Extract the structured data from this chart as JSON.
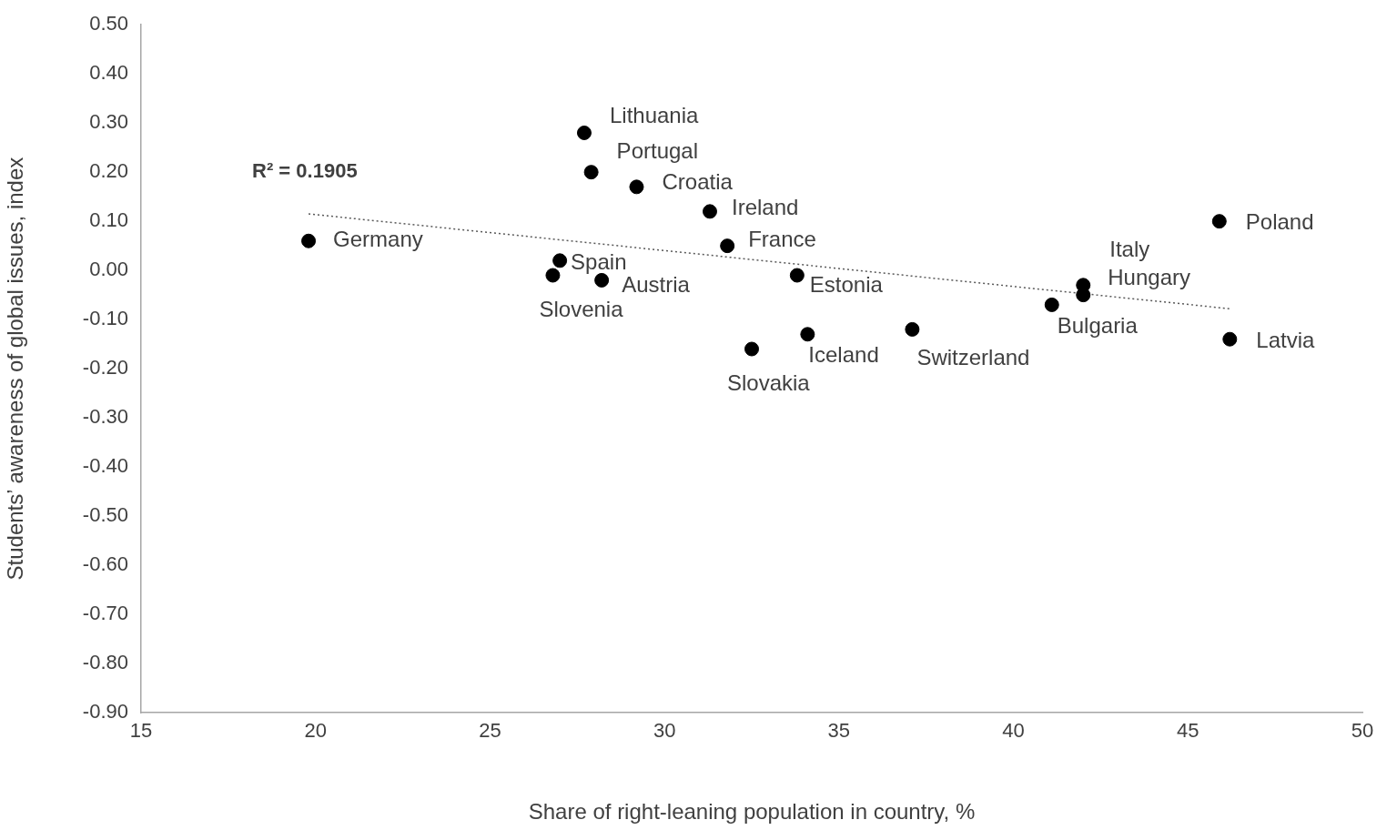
{
  "chart_data": {
    "type": "scatter",
    "xlabel": "Share of right-leaning population in country, %",
    "ylabel": "Students’ awareness of global issues, index",
    "xlim": [
      15,
      50
    ],
    "xticks": [
      15,
      20,
      25,
      30,
      35,
      40,
      45,
      50
    ],
    "ylim": [
      -0.9,
      0.5
    ],
    "yticks": [
      {
        "value": -0.9,
        "label": "-0.90"
      },
      {
        "value": -0.8,
        "label": "-0.80"
      },
      {
        "value": -0.7,
        "label": "-0.70"
      },
      {
        "value": -0.6,
        "label": "-0.60"
      },
      {
        "value": -0.5,
        "label": "-0.50"
      },
      {
        "value": -0.4,
        "label": "-0.40"
      },
      {
        "value": -0.3,
        "label": "-0.30"
      },
      {
        "value": -0.2,
        "label": "-0.20"
      },
      {
        "value": -0.1,
        "label": "-0.10"
      },
      {
        "value": 0,
        "label": "0.00"
      },
      {
        "value": 0.1,
        "label": "0.10"
      },
      {
        "value": 0.2,
        "label": "0.20"
      },
      {
        "value": 0.3,
        "label": "0.30"
      },
      {
        "value": 0.4,
        "label": "0.40"
      },
      {
        "value": 0.5,
        "label": "0.50"
      }
    ],
    "grid": false,
    "legend": false,
    "marker": "circle",
    "series": [
      {
        "name": "Germany",
        "color": "#000000",
        "x": [
          19.8
        ],
        "values": [
          0.06
        ]
      },
      {
        "name": "Lithuania",
        "color": "#000000",
        "x": [
          27.7
        ],
        "values": [
          0.28
        ]
      },
      {
        "name": "Portugal",
        "color": "#000000",
        "x": [
          27.9
        ],
        "values": [
          0.2
        ]
      },
      {
        "name": "Croatia",
        "color": "#000000",
        "x": [
          29.2
        ],
        "values": [
          0.17
        ]
      },
      {
        "name": "Ireland",
        "color": "#000000",
        "x": [
          31.3
        ],
        "values": [
          0.12
        ]
      },
      {
        "name": "France",
        "color": "#000000",
        "x": [
          31.8
        ],
        "values": [
          0.05
        ]
      },
      {
        "name": "Spain",
        "color": "#000000",
        "x": [
          27.0
        ],
        "values": [
          0.02
        ]
      },
      {
        "name": "Slovenia",
        "color": "#000000",
        "x": [
          26.8
        ],
        "values": [
          -0.01
        ]
      },
      {
        "name": "Austria",
        "color": "#000000",
        "x": [
          28.2
        ],
        "values": [
          -0.02
        ]
      },
      {
        "name": "Estonia",
        "color": "#000000",
        "x": [
          33.8
        ],
        "values": [
          -0.01
        ]
      },
      {
        "name": "Iceland",
        "color": "#000000",
        "x": [
          34.1
        ],
        "values": [
          -0.13
        ]
      },
      {
        "name": "Slovakia",
        "color": "#000000",
        "x": [
          32.5
        ],
        "values": [
          -0.16
        ]
      },
      {
        "name": "Switzerland",
        "color": "#000000",
        "x": [
          37.1
        ],
        "values": [
          -0.12
        ]
      },
      {
        "name": "Bulgaria",
        "color": "#000000",
        "x": [
          41.1
        ],
        "values": [
          -0.07
        ]
      },
      {
        "name": "Italy",
        "color": "#000000",
        "x": [
          42.0
        ],
        "values": [
          -0.03
        ]
      },
      {
        "name": "Hungary",
        "color": "#000000",
        "x": [
          42.0
        ],
        "values": [
          -0.05
        ]
      },
      {
        "name": "Poland",
        "color": "#000000",
        "x": [
          45.9
        ],
        "values": [
          0.1
        ]
      },
      {
        "name": "Latvia",
        "color": "#000000",
        "x": [
          46.2
        ],
        "values": [
          -0.14
        ]
      },
      {
        "type": "line",
        "color": "#595959",
        "line_style": "dotted",
        "marker": "none",
        "x": [
          19.8,
          46.2
        ],
        "values": [
          0.115,
          -0.078
        ]
      }
    ],
    "annotations": [
      "R² = 0.1905"
    ]
  }
}
